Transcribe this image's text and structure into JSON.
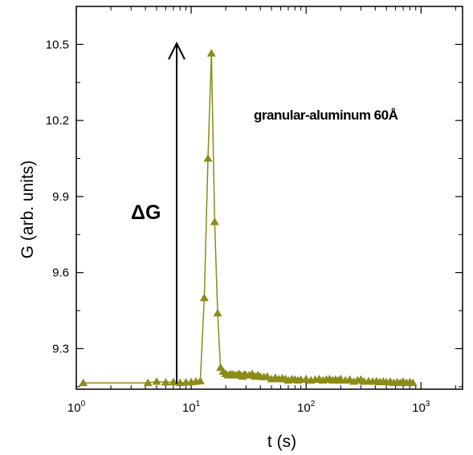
{
  "chart_data": {
    "type": "line",
    "title": "",
    "xlabel": "t (s)",
    "ylabel": "G (arb. units)",
    "x_scale": "log",
    "xlim": [
      1,
      2300
    ],
    "ylim": [
      9.14,
      10.65
    ],
    "x_ticks": [
      {
        "base": "10",
        "exp": "0"
      },
      {
        "base": "10",
        "exp": "1"
      },
      {
        "base": "10",
        "exp": "2"
      },
      {
        "base": "10",
        "exp": "3"
      }
    ],
    "x_tick_values": [
      1,
      10,
      100,
      1000
    ],
    "y_ticks": [
      "9.3",
      "9.6",
      "9.9",
      "10.2",
      "10.5"
    ],
    "y_tick_values": [
      9.3,
      9.6,
      9.9,
      10.2,
      10.5
    ],
    "grid": false,
    "annotations": {
      "label": "granular-aluminum 60Å",
      "delta_symbol": "Δ",
      "delta_text": "G"
    },
    "series": [
      {
        "color": "#8b8b1a",
        "marker": "triangle",
        "x": [
          1.15,
          4.2,
          5.0,
          6.0,
          7.0,
          8.0,
          9.0,
          10.0,
          11.0,
          12.0,
          13.0,
          14.0,
          15.0,
          16.0,
          17.0,
          18.0,
          19.0,
          20.0,
          21.0,
          22.0,
          23.0,
          24.0,
          25.0,
          26.0,
          27.0,
          28.0,
          29.0,
          30.0,
          32.0,
          34.0,
          36.0,
          38.0,
          40.0,
          43.0,
          46.0,
          50.0,
          54.0,
          58.0,
          62.0,
          66.0,
          70.0,
          75.0,
          80.0,
          85.0,
          90.0,
          100.0,
          110.0,
          120.0,
          130.0,
          140.0,
          150.0,
          160.0,
          170.0,
          180.0,
          190.0,
          200.0,
          220.0,
          240.0,
          260.0,
          280.0,
          300.0,
          320.0,
          350.0,
          380.0,
          410.0,
          440.0,
          470.0,
          500.0,
          540.0,
          580.0,
          620.0,
          660.0,
          700.0,
          750.0,
          800.0,
          850.0
        ],
        "y": [
          9.165,
          9.165,
          9.17,
          9.167,
          9.168,
          9.165,
          9.167,
          9.168,
          9.17,
          9.172,
          9.5,
          10.05,
          10.465,
          9.8,
          9.44,
          9.225,
          9.21,
          9.2,
          9.195,
          9.2,
          9.198,
          9.195,
          9.195,
          9.2,
          9.195,
          9.19,
          9.198,
          9.195,
          9.195,
          9.2,
          9.19,
          9.195,
          9.19,
          9.188,
          9.19,
          9.18,
          9.185,
          9.18,
          9.183,
          9.18,
          9.175,
          9.18,
          9.178,
          9.175,
          9.178,
          9.18,
          9.175,
          9.178,
          9.18,
          9.175,
          9.178,
          9.18,
          9.175,
          9.178,
          9.175,
          9.18,
          9.175,
          9.178,
          9.17,
          9.175,
          9.178,
          9.17,
          9.172,
          9.17,
          9.172,
          9.168,
          9.17,
          9.168,
          9.17,
          9.165,
          9.168,
          9.165,
          9.17,
          9.165,
          9.168,
          9.165
        ]
      }
    ]
  }
}
